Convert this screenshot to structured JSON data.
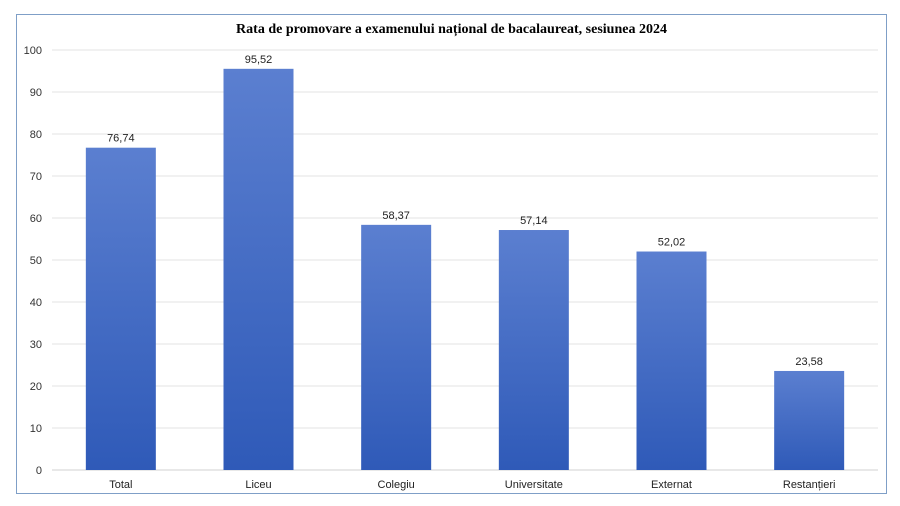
{
  "chart_data": {
    "type": "bar",
    "title": "Rata de promovare a examenului național de bacalaureat, sesiunea 2024",
    "categories": [
      "Total",
      "Liceu",
      "Colegiu",
      "Universitate",
      "Externat",
      "Restanțieri"
    ],
    "values": [
      76.74,
      95.52,
      58.37,
      57.14,
      52.02,
      23.58
    ],
    "value_labels": [
      "76,74",
      "95,52",
      "58,37",
      "57,14",
      "52,02",
      "23,58"
    ],
    "ylim": [
      0,
      100
    ],
    "yticks": [
      0,
      10,
      20,
      30,
      40,
      50,
      60,
      70,
      80,
      90,
      100
    ],
    "grid": true,
    "legend": "none",
    "bar_color_top": "#5b7fd0",
    "bar_color_bottom": "#2f5ab8",
    "xlabel": "",
    "ylabel": ""
  }
}
